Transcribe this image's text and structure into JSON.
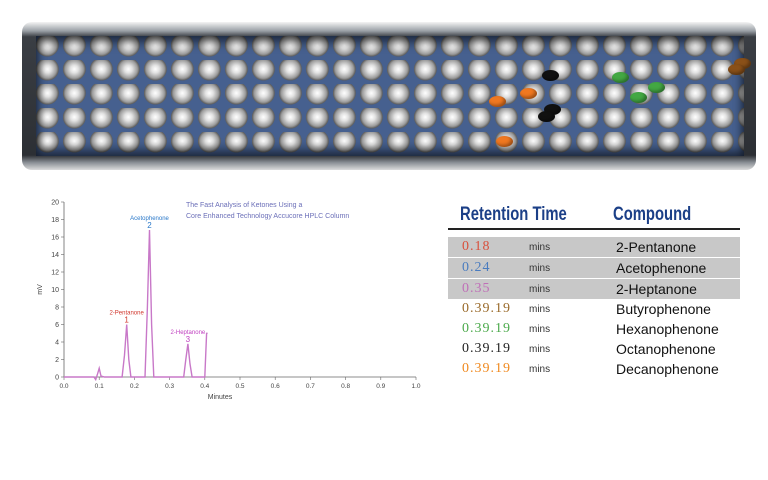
{
  "chart_data": {
    "type": "line",
    "title_lines": [
      "The Fast Analysis of Ketones Using a",
      "Core Enhanced Technology Accucore HPLC Column"
    ],
    "xlabel": "Minutes",
    "ylabel": "mV",
    "xlim": [
      0.0,
      1.0
    ],
    "ylim": [
      0,
      20
    ],
    "x_ticks": [
      "0.0",
      "0.1",
      "0.2",
      "0.3",
      "0.4",
      "0.5",
      "0.6",
      "0.7",
      "0.8",
      "0.9",
      "1.0"
    ],
    "y_ticks": [
      "0",
      "2",
      "4",
      "6",
      "8",
      "10",
      "12",
      "14",
      "16",
      "18",
      "20"
    ],
    "x": [
      0.0,
      0.085,
      0.09,
      0.095,
      0.1,
      0.105,
      0.115,
      0.165,
      0.172,
      0.178,
      0.184,
      0.19,
      0.23,
      0.237,
      0.243,
      0.249,
      0.255,
      0.34,
      0.346,
      0.352,
      0.358,
      0.364,
      0.395,
      0.4,
      0.405,
      0.408
    ],
    "y": [
      0.0,
      0.0,
      -0.3,
      0.3,
      1.0,
      0.1,
      0.0,
      0.0,
      2.5,
      6.0,
      2.0,
      0.0,
      0.0,
      8.0,
      16.8,
      6.0,
      0.0,
      0.0,
      2.0,
      3.8,
      1.5,
      0.0,
      0.0,
      0.0,
      5.0,
      5.0
    ],
    "peak_labels": [
      {
        "name": "2-Pentanone",
        "number": "1",
        "x": 0.178,
        "y": 6.0,
        "color": "#d0362c"
      },
      {
        "name": "Acetophenone",
        "number": "2",
        "x": 0.243,
        "y": 16.8,
        "color": "#2a78c9"
      },
      {
        "name": "2-Heptanone",
        "number": "3",
        "x": 0.352,
        "y": 3.8,
        "color": "#c040c0"
      }
    ],
    "line_color": "#c878c8",
    "grid": false
  },
  "table": {
    "headers": {
      "retention_time": "Retention Time",
      "compound": "Compound"
    },
    "rows": [
      {
        "time": "0.18",
        "unit": "mins",
        "compound": "2-Pentanone",
        "time_color": "#d9503c",
        "shaded": true
      },
      {
        "time": "0.24",
        "unit": "mins",
        "compound": "Acetophenone",
        "time_color": "#4a7cbf",
        "shaded": true
      },
      {
        "time": "0.35",
        "unit": "mins",
        "compound": "2-Heptanone",
        "time_color": "#c070b8",
        "shaded": true
      },
      {
        "time": "0.39.19",
        "unit": "mins",
        "compound": "Butyrophenone",
        "time_color": "#9a6a2a",
        "shaded": false
      },
      {
        "time": "0.39.19",
        "unit": "mins",
        "compound": "Hexanophenone",
        "time_color": "#4caa4c",
        "shaded": false
      },
      {
        "time": "0.39.19",
        "unit": "mins",
        "compound": "Octanophenone",
        "time_color": "#222222",
        "shaded": false
      },
      {
        "time": "0.39.19",
        "unit": "mins",
        "compound": "Decanophenone",
        "time_color": "#f08a20",
        "shaded": false
      }
    ]
  },
  "column": {
    "bead_colors": {
      "orange": "#f07820",
      "black": "#111111",
      "green": "#43a843",
      "brown": "#8a5018"
    }
  }
}
